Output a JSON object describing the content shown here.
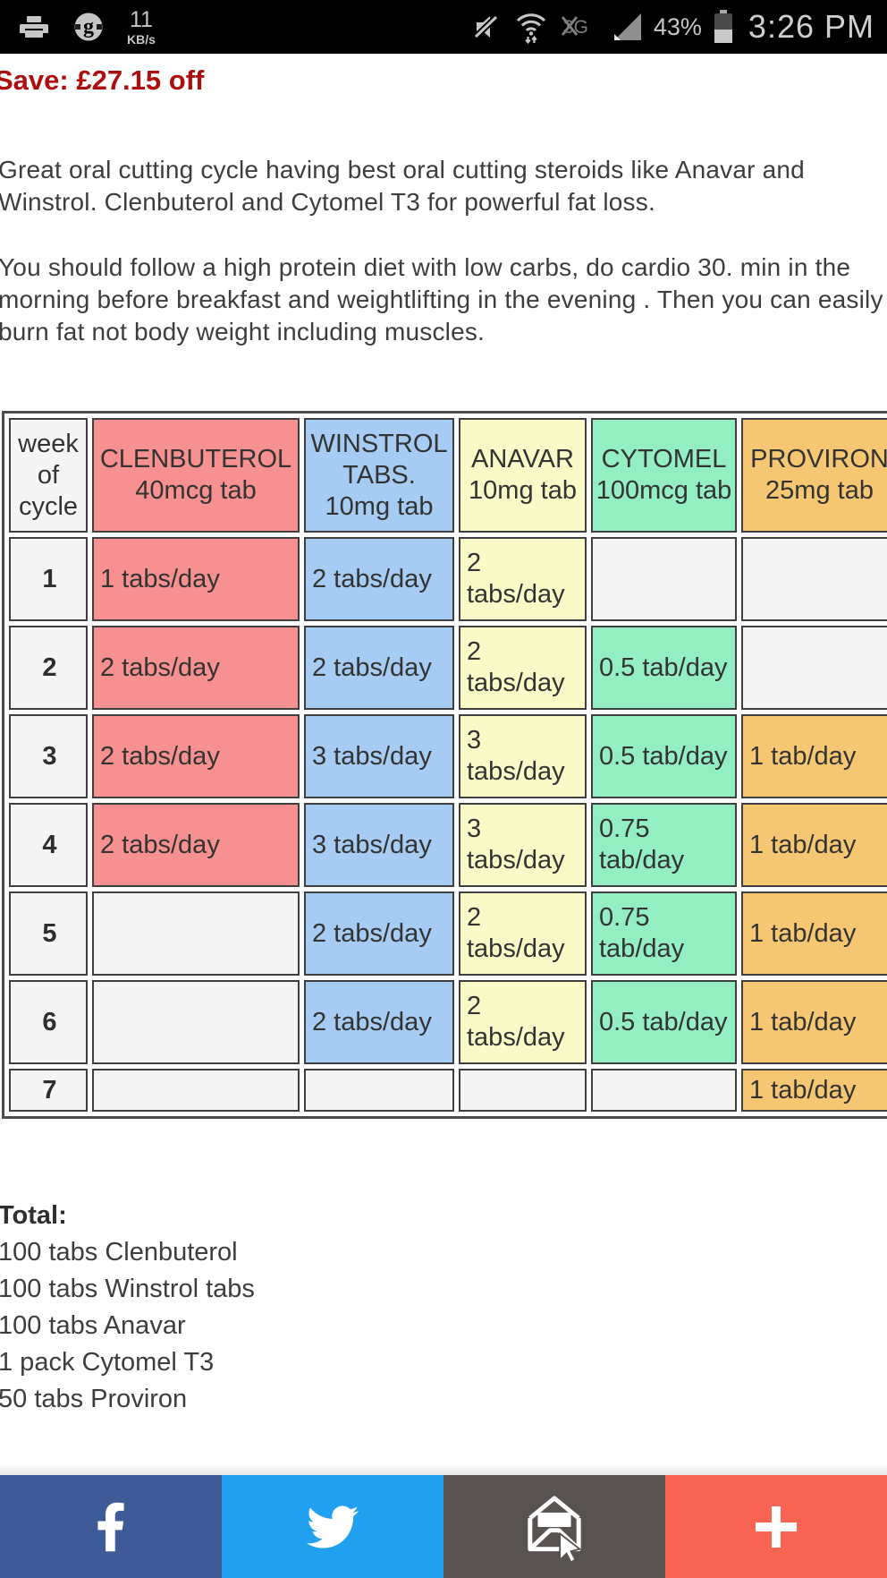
{
  "status_bar": {
    "time": "3:26 PM",
    "battery_percent": "43%",
    "net_speed": "11",
    "net_speed_unit": "KB/s"
  },
  "content": {
    "save_banner": "Save: £27.15 off",
    "paragraph1": "Great oral cutting cycle having best oral cutting steroids like Anavar and Winstrol. Clenbuterol and Cytomel T3 for powerful fat loss.",
    "paragraph2": "You should follow a high protein diet with low carbs, do cardio 30. min in the morning before breakfast and weightlifting in the evening . Then you can easily burn fat not body weight including muscles."
  },
  "cycle_table": {
    "header": [
      {
        "label": "week of cycle",
        "bg": "#f5f5f5"
      },
      {
        "label": "CLENBUTEROL 40mcg tab",
        "bg": "#f79090"
      },
      {
        "label": "WINSTROL TABS. 10mg tab",
        "bg": "#a6ccf3"
      },
      {
        "label": "ANAVAR 10mg tab",
        "bg": "#fafac8"
      },
      {
        "label": "CYTOMEL 100mcg tab",
        "bg": "#93efc1"
      },
      {
        "label": "PROVIRON 25mg tab",
        "bg": "#f6c772"
      }
    ],
    "empty_bg": "#f4f4f4",
    "rows": [
      {
        "week": "1",
        "cells": [
          "1 tabs/day",
          "2 tabs/day",
          "2 tabs/day",
          "",
          ""
        ]
      },
      {
        "week": "2",
        "cells": [
          "2 tabs/day",
          "2 tabs/day",
          "2 tabs/day",
          "0.5 tab/day",
          ""
        ]
      },
      {
        "week": "3",
        "cells": [
          "2 tabs/day",
          "3 tabs/day",
          "3 tabs/day",
          "0.5 tab/day",
          "1 tab/day"
        ]
      },
      {
        "week": "4",
        "cells": [
          "2 tabs/day",
          "3 tabs/day",
          "3 tabs/day",
          "0.75 tab/day",
          "1 tab/day"
        ]
      },
      {
        "week": "5",
        "cells": [
          "",
          "2 tabs/day",
          "2 tabs/day",
          "0.75 tab/day",
          "1 tab/day"
        ]
      },
      {
        "week": "6",
        "cells": [
          "",
          "2 tabs/day",
          "2 tabs/day",
          "0.5 tab/day",
          "1 tab/day"
        ]
      },
      {
        "week": "7",
        "cells": [
          "",
          "",
          "",
          "",
          "1 tab/day"
        ]
      }
    ]
  },
  "totals": {
    "heading": "Total:",
    "items": [
      "100 tabs Clenbuterol",
      "100 tabs Winstrol tabs",
      "100 tabs Anavar",
      "1 pack Cytomel T3",
      "50 tabs Proviron"
    ]
  },
  "share_bar": {
    "buttons": [
      {
        "id": "facebook",
        "color": "#3e5b97"
      },
      {
        "id": "twitter",
        "color": "#21a0ef"
      },
      {
        "id": "email",
        "color": "#585350"
      },
      {
        "id": "more",
        "color": "#fa6553"
      }
    ]
  },
  "colors": {
    "save_text": "#ad0f0f",
    "body_text": "#3d3d3d",
    "status_bar_bg": "#000000"
  }
}
